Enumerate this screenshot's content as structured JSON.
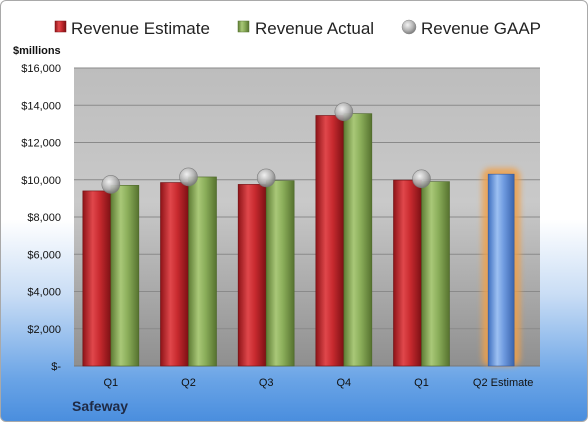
{
  "chart_data": {
    "type": "bar",
    "unit_label": "$millions",
    "categories": [
      "Q1",
      "Q2",
      "Q3",
      "Q4",
      "Q1",
      "Q2 Estimate"
    ],
    "ylim": [
      0,
      16000
    ],
    "yticks": [
      0,
      2000,
      4000,
      6000,
      8000,
      10000,
      12000,
      14000,
      16000
    ],
    "ytick_labels": [
      "$-",
      "$2,000",
      "$4,000",
      "$6,000",
      "$8,000",
      "$10,000",
      "$12,000",
      "$14,000",
      "$16,000"
    ],
    "grid": true,
    "legend_position": "top",
    "series": [
      {
        "name": "Revenue Estimate",
        "type": "bar",
        "color": "#c0282d",
        "values": [
          9400,
          9850,
          9750,
          13450,
          9980,
          null
        ]
      },
      {
        "name": "Revenue Actual",
        "type": "bar",
        "color": "#8bae5a",
        "values": [
          9700,
          10150,
          9950,
          13550,
          9900,
          null
        ]
      },
      {
        "name": "Revenue GAAP",
        "type": "marker",
        "color": "#b8b8b8",
        "values": [
          9750,
          10150,
          10100,
          13650,
          10050,
          null
        ]
      }
    ],
    "highlight": {
      "category_index": 5,
      "value": 10300,
      "color": "#6f9be0",
      "glow": "#f0a04a"
    }
  },
  "company_name": "Safeway"
}
